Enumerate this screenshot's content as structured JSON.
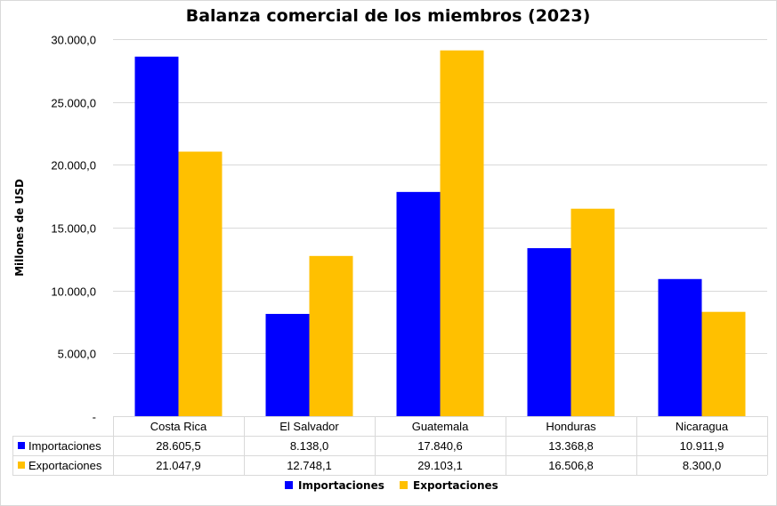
{
  "chart_data": {
    "type": "bar",
    "title": "Balanza comercial de los miembros (2023)",
    "ylabel": "Millones de USD",
    "xlabel": "",
    "categories": [
      "Costa Rica",
      "El Salvador",
      "Guatemala",
      "Honduras",
      "Nicaragua"
    ],
    "series": [
      {
        "name": "Importaciones",
        "color": "#0000ff",
        "values": [
          28605.5,
          8138.0,
          17840.6,
          13368.8,
          10911.9
        ],
        "labels": [
          "28.605,5",
          "8.138,0",
          "17.840,6",
          "13.368,8",
          "10.911,9"
        ]
      },
      {
        "name": "Exportaciones",
        "color": "#ffc000",
        "values": [
          21047.9,
          12748.1,
          29103.1,
          16506.8,
          8300.0
        ],
        "labels": [
          "21.047,9",
          "12.748,1",
          "29.103,1",
          "16.506,8",
          "8.300,0"
        ]
      }
    ],
    "ylim": [
      0,
      30000
    ],
    "yticks": [
      0,
      5000,
      10000,
      15000,
      20000,
      25000,
      30000
    ],
    "yticklabels": [
      "-",
      "5.000,0",
      "10.000,0",
      "15.000,0",
      "20.000,0",
      "25.000,0",
      "30.000,0"
    ],
    "grid": true,
    "legend": "bottom",
    "data_table": true
  }
}
